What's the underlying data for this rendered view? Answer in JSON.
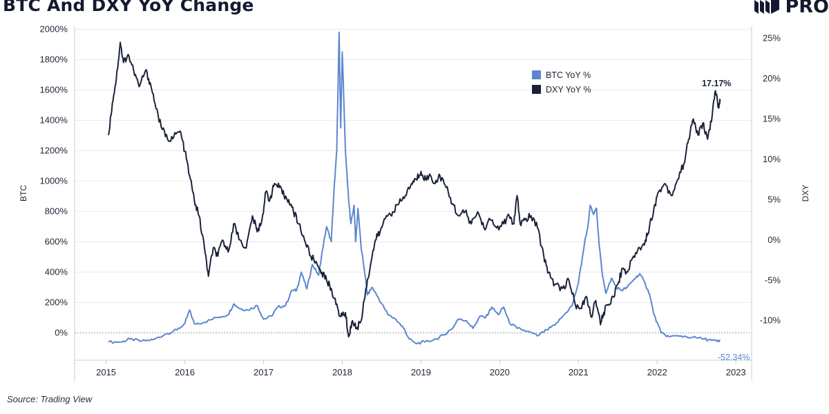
{
  "header": {
    "title": "BTC And DXY YoY Change",
    "logo_text": "PRO"
  },
  "footer": {
    "source": "Source: Trading View"
  },
  "chart_data": {
    "type": "line",
    "title": "BTC And DXY YoY Change",
    "xlabel": "",
    "ylabel": "BTC",
    "y2label": "DXY",
    "x_ticks": [
      "2015",
      "2016",
      "2017",
      "2018",
      "2019",
      "2020",
      "2021",
      "2022",
      "2023"
    ],
    "x_range": [
      2014.6,
      2023.2
    ],
    "y_left": {
      "ticks": [
        0,
        200,
        400,
        600,
        800,
        1000,
        1200,
        1400,
        1600,
        1800,
        2000
      ],
      "tick_labels": [
        "0%",
        "200%",
        "400%",
        "600%",
        "800%",
        "1000%",
        "1200%",
        "1400%",
        "1600%",
        "1800%",
        "2000%"
      ],
      "range": [
        -180,
        2020
      ]
    },
    "y_right": {
      "ticks": [
        -10,
        -5,
        0,
        5,
        10,
        15,
        20,
        25
      ],
      "tick_labels": [
        "-10%",
        "-5%",
        "0%",
        "5%",
        "10%",
        "15%",
        "20%",
        "25%"
      ],
      "range": [
        -14.9,
        26.5
      ]
    },
    "zero_line": "dashed",
    "legend": {
      "position": "top-center",
      "entries": [
        "BTC YoY %",
        "DXY YoY %"
      ]
    },
    "colors": {
      "btc": "#5b86cf",
      "dxy": "#1b2238"
    },
    "series": [
      {
        "name": "BTC YoY %",
        "axis": "left",
        "color": "#5b86cf",
        "end_label": "-52.34%",
        "points": [
          [
            2015.03,
            -60
          ],
          [
            2015.2,
            -60
          ],
          [
            2015.3,
            -40
          ],
          [
            2015.45,
            -55
          ],
          [
            2015.6,
            -45
          ],
          [
            2015.75,
            -10
          ],
          [
            2015.9,
            20
          ],
          [
            2016.0,
            60
          ],
          [
            2016.06,
            150
          ],
          [
            2016.12,
            60
          ],
          [
            2016.25,
            70
          ],
          [
            2016.4,
            100
          ],
          [
            2016.55,
            120
          ],
          [
            2016.62,
            190
          ],
          [
            2016.7,
            160
          ],
          [
            2016.8,
            150
          ],
          [
            2016.92,
            180
          ],
          [
            2017.0,
            90
          ],
          [
            2017.1,
            110
          ],
          [
            2017.18,
            170
          ],
          [
            2017.28,
            180
          ],
          [
            2017.36,
            280
          ],
          [
            2017.42,
            280
          ],
          [
            2017.48,
            400
          ],
          [
            2017.55,
            290
          ],
          [
            2017.62,
            450
          ],
          [
            2017.7,
            380
          ],
          [
            2017.75,
            550
          ],
          [
            2017.8,
            700
          ],
          [
            2017.86,
            600
          ],
          [
            2017.9,
            980
          ],
          [
            2017.93,
            1200
          ],
          [
            2017.96,
            1980
          ],
          [
            2017.98,
            1350
          ],
          [
            2018.0,
            1850
          ],
          [
            2018.04,
            1200
          ],
          [
            2018.08,
            880
          ],
          [
            2018.11,
            720
          ],
          [
            2018.15,
            840
          ],
          [
            2018.17,
            600
          ],
          [
            2018.2,
            820
          ],
          [
            2018.24,
            560
          ],
          [
            2018.28,
            420
          ],
          [
            2018.32,
            250
          ],
          [
            2018.38,
            300
          ],
          [
            2018.46,
            230
          ],
          [
            2018.58,
            120
          ],
          [
            2018.68,
            90
          ],
          [
            2018.78,
            30
          ],
          [
            2018.85,
            -40
          ],
          [
            2018.93,
            -70
          ],
          [
            2019.05,
            -60
          ],
          [
            2019.2,
            -40
          ],
          [
            2019.3,
            -10
          ],
          [
            2019.4,
            30
          ],
          [
            2019.47,
            90
          ],
          [
            2019.58,
            80
          ],
          [
            2019.66,
            30
          ],
          [
            2019.75,
            110
          ],
          [
            2019.82,
            100
          ],
          [
            2019.9,
            170
          ],
          [
            2019.98,
            120
          ],
          [
            2020.05,
            170
          ],
          [
            2020.12,
            70
          ],
          [
            2020.22,
            30
          ],
          [
            2020.35,
            10
          ],
          [
            2020.48,
            -20
          ],
          [
            2020.6,
            20
          ],
          [
            2020.7,
            50
          ],
          [
            2020.82,
            120
          ],
          [
            2020.92,
            180
          ],
          [
            2021.0,
            330
          ],
          [
            2021.08,
            600
          ],
          [
            2021.12,
            700
          ],
          [
            2021.15,
            840
          ],
          [
            2021.19,
            780
          ],
          [
            2021.23,
            820
          ],
          [
            2021.26,
            600
          ],
          [
            2021.3,
            400
          ],
          [
            2021.35,
            260
          ],
          [
            2021.42,
            360
          ],
          [
            2021.48,
            300
          ],
          [
            2021.55,
            280
          ],
          [
            2021.62,
            300
          ],
          [
            2021.7,
            350
          ],
          [
            2021.78,
            390
          ],
          [
            2021.85,
            320
          ],
          [
            2021.9,
            260
          ],
          [
            2021.96,
            120
          ],
          [
            2022.05,
            0
          ],
          [
            2022.15,
            -25
          ],
          [
            2022.3,
            -20
          ],
          [
            2022.45,
            -30
          ],
          [
            2022.6,
            -40
          ],
          [
            2022.7,
            -50
          ],
          [
            2022.77,
            -55
          ],
          [
            2022.8,
            -52
          ]
        ]
      },
      {
        "name": "DXY YoY %",
        "axis": "right",
        "color": "#1b2238",
        "end_label": "17.17%",
        "points": [
          [
            2015.03,
            13
          ],
          [
            2015.08,
            17
          ],
          [
            2015.13,
            20
          ],
          [
            2015.18,
            24.5
          ],
          [
            2015.22,
            22
          ],
          [
            2015.28,
            23
          ],
          [
            2015.35,
            21
          ],
          [
            2015.42,
            19
          ],
          [
            2015.5,
            21
          ],
          [
            2015.56,
            19.5
          ],
          [
            2015.62,
            17
          ],
          [
            2015.7,
            14
          ],
          [
            2015.78,
            12.5
          ],
          [
            2015.86,
            12.8
          ],
          [
            2015.94,
            13.5
          ],
          [
            2016.0,
            11
          ],
          [
            2016.06,
            8
          ],
          [
            2016.12,
            5
          ],
          [
            2016.18,
            3
          ],
          [
            2016.25,
            -1
          ],
          [
            2016.3,
            -4.5
          ],
          [
            2016.36,
            -1
          ],
          [
            2016.42,
            -2
          ],
          [
            2016.48,
            0
          ],
          [
            2016.55,
            -1.5
          ],
          [
            2016.62,
            2
          ],
          [
            2016.7,
            0
          ],
          [
            2016.78,
            -1
          ],
          [
            2016.86,
            3
          ],
          [
            2016.92,
            1
          ],
          [
            2016.98,
            2.5
          ],
          [
            2017.03,
            6
          ],
          [
            2017.08,
            5
          ],
          [
            2017.14,
            7
          ],
          [
            2017.2,
            6.5
          ],
          [
            2017.26,
            5.5
          ],
          [
            2017.32,
            5
          ],
          [
            2017.38,
            3.5
          ],
          [
            2017.45,
            2
          ],
          [
            2017.52,
            0
          ],
          [
            2017.6,
            -2
          ],
          [
            2017.68,
            -3
          ],
          [
            2017.74,
            -4
          ],
          [
            2017.8,
            -5
          ],
          [
            2017.86,
            -6
          ],
          [
            2017.92,
            -8
          ],
          [
            2017.98,
            -9.5
          ],
          [
            2018.04,
            -9
          ],
          [
            2018.08,
            -12
          ],
          [
            2018.13,
            -10
          ],
          [
            2018.18,
            -11
          ],
          [
            2018.24,
            -10
          ],
          [
            2018.3,
            -6
          ],
          [
            2018.36,
            -3
          ],
          [
            2018.42,
            0
          ],
          [
            2018.48,
            1
          ],
          [
            2018.56,
            3
          ],
          [
            2018.64,
            3.5
          ],
          [
            2018.72,
            4.5
          ],
          [
            2018.8,
            5.5
          ],
          [
            2018.88,
            7
          ],
          [
            2018.94,
            7.5
          ],
          [
            2019.0,
            8.5
          ],
          [
            2019.06,
            7.5
          ],
          [
            2019.12,
            8
          ],
          [
            2019.18,
            7
          ],
          [
            2019.24,
            8
          ],
          [
            2019.32,
            6.5
          ],
          [
            2019.4,
            4.5
          ],
          [
            2019.48,
            3
          ],
          [
            2019.56,
            3.5
          ],
          [
            2019.64,
            2
          ],
          [
            2019.72,
            3.5
          ],
          [
            2019.8,
            1.5
          ],
          [
            2019.88,
            2.5
          ],
          [
            2019.96,
            1.5
          ],
          [
            2020.05,
            2
          ],
          [
            2020.12,
            3
          ],
          [
            2020.18,
            2
          ],
          [
            2020.22,
            5.5
          ],
          [
            2020.26,
            2
          ],
          [
            2020.32,
            2.5
          ],
          [
            2020.4,
            3
          ],
          [
            2020.48,
            1.5
          ],
          [
            2020.56,
            -2
          ],
          [
            2020.62,
            -4
          ],
          [
            2020.7,
            -5.5
          ],
          [
            2020.8,
            -6
          ],
          [
            2020.88,
            -5
          ],
          [
            2020.96,
            -8
          ],
          [
            2021.04,
            -8.5
          ],
          [
            2021.1,
            -7
          ],
          [
            2021.16,
            -9.5
          ],
          [
            2021.22,
            -7.5
          ],
          [
            2021.28,
            -10.5
          ],
          [
            2021.32,
            -9
          ],
          [
            2021.38,
            -8
          ],
          [
            2021.44,
            -7
          ],
          [
            2021.5,
            -5.5
          ],
          [
            2021.56,
            -3.5
          ],
          [
            2021.62,
            -4
          ],
          [
            2021.7,
            -2
          ],
          [
            2021.78,
            -1
          ],
          [
            2021.85,
            0
          ],
          [
            2021.9,
            1.5
          ],
          [
            2021.96,
            4
          ],
          [
            2022.02,
            6
          ],
          [
            2022.1,
            7
          ],
          [
            2022.18,
            5.5
          ],
          [
            2022.26,
            7.5
          ],
          [
            2022.34,
            9.5
          ],
          [
            2022.4,
            12.5
          ],
          [
            2022.46,
            15
          ],
          [
            2022.52,
            13
          ],
          [
            2022.58,
            14.5
          ],
          [
            2022.64,
            12.5
          ],
          [
            2022.7,
            15.5
          ],
          [
            2022.74,
            18.5
          ],
          [
            2022.78,
            16.5
          ],
          [
            2022.8,
            17.17
          ]
        ]
      }
    ]
  }
}
